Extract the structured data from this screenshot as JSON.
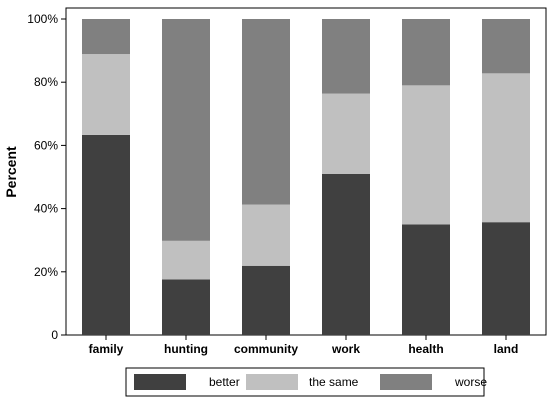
{
  "chart_data": {
    "type": "bar",
    "stacked": true,
    "title": "",
    "xlabel": "",
    "ylabel": "Percent",
    "ylim": [
      0,
      100
    ],
    "y_ticks": [
      "0",
      "20%",
      "40%",
      "60%",
      "80%",
      "100%"
    ],
    "categories": [
      "family",
      "hunting",
      "community",
      "work",
      "health",
      "land"
    ],
    "series": [
      {
        "name": "better",
        "color": "#404040",
        "values": [
          63.3,
          17.6,
          21.9,
          51.0,
          35.0,
          35.7
        ]
      },
      {
        "name": "the same",
        "color": "#c0c0c0",
        "values": [
          25.6,
          12.2,
          19.4,
          25.4,
          44.0,
          47.1
        ]
      },
      {
        "name": "worse",
        "color": "#808080",
        "values": [
          11.1,
          70.2,
          58.7,
          23.6,
          21.0,
          17.2
        ]
      }
    ],
    "grid": false,
    "legend_position": "bottom"
  }
}
